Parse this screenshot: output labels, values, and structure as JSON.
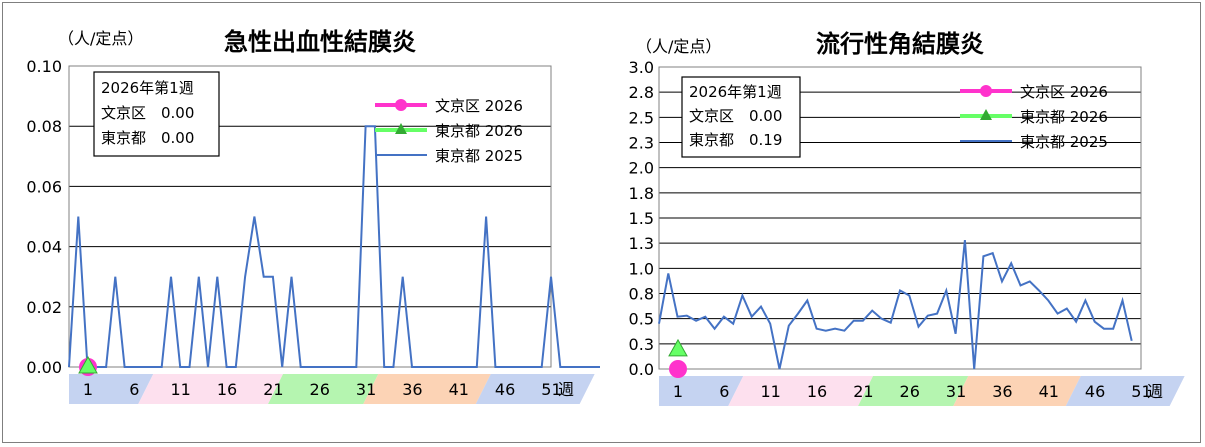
{
  "colors": {
    "bunkyo_2026": "#ff33cc",
    "tokyo_2026": "#66ff66",
    "tokyo_2025": "#4472c4",
    "band_blue": "#c5d3f1",
    "band_pink": "#fde0ee",
    "band_green": "#b5f5b0",
    "band_orange": "#fcd3b5"
  },
  "week_suffix": "週",
  "chart_data": [
    {
      "type": "line",
      "title": "急性出血性結膜炎",
      "ylabel": "（人/定点）",
      "ylim": [
        0,
        0.1
      ],
      "yticks": [
        "0.00",
        "0.02",
        "0.04",
        "0.06",
        "0.08",
        "0.10"
      ],
      "ytick_values": [
        0,
        0.02,
        0.04,
        0.06,
        0.08,
        0.1
      ],
      "x_ticks": [
        "1",
        "6",
        "11",
        "16",
        "21",
        "26",
        "31",
        "36",
        "41",
        "46",
        "51"
      ],
      "info": {
        "week": "2026年第1週",
        "line1": "文京区　0.00",
        "line2": "東京都　0.00"
      },
      "legend": [
        "文京区 2026",
        "東京都 2026",
        "東京都 2025"
      ],
      "series": [
        {
          "name": "文京区 2026",
          "values": [
            0
          ]
        },
        {
          "name": "東京都 2026",
          "values": [
            0
          ]
        },
        {
          "name": "東京都 2025",
          "values": [
            0,
            0.05,
            0,
            0,
            0,
            0.03,
            0,
            0,
            0,
            0,
            0,
            0.03,
            0,
            0,
            0.03,
            0,
            0.03,
            0,
            0,
            0.03,
            0.05,
            0.03,
            0.03,
            0,
            0.03,
            0,
            0,
            0,
            0,
            0,
            0,
            0,
            0.08,
            0.08,
            0,
            0,
            0.03,
            0,
            0,
            0,
            0,
            0,
            0,
            0,
            0,
            0.05,
            0,
            0,
            0,
            0,
            0,
            0,
            0.03,
            0,
            0,
            0,
            0,
            0,
            0
          ]
        }
      ]
    },
    {
      "type": "line",
      "title": "流行性角結膜炎",
      "ylabel": "（人/定点）",
      "ylim": [
        0,
        3.0
      ],
      "yticks": [
        "0.0",
        "0.3",
        "0.5",
        "0.8",
        "1.0",
        "1.3",
        "1.5",
        "1.8",
        "2.0",
        "2.3",
        "2.5",
        "2.8",
        "3.0"
      ],
      "ytick_values": [
        0,
        0.25,
        0.5,
        0.75,
        1.0,
        1.25,
        1.5,
        1.75,
        2.0,
        2.25,
        2.5,
        2.75,
        3.0
      ],
      "x_ticks": [
        "1",
        "6",
        "11",
        "16",
        "21",
        "26",
        "31",
        "36",
        "41",
        "46",
        "51"
      ],
      "info": {
        "week": "2026年第1週",
        "line1": "文京区　0.00",
        "line2": "東京都　0.19"
      },
      "legend": [
        "文京区 2026",
        "東京都 2026",
        "東京都 2025"
      ],
      "series": [
        {
          "name": "文京区 2026",
          "values": [
            0.0
          ]
        },
        {
          "name": "東京都 2026",
          "values": [
            0.19
          ]
        },
        {
          "name": "東京都 2025",
          "values": [
            0.45,
            0.95,
            0.52,
            0.53,
            0.48,
            0.52,
            0.4,
            0.52,
            0.45,
            0.73,
            0.52,
            0.62,
            0.45,
            0.0,
            0.43,
            0.55,
            0.68,
            0.4,
            0.38,
            0.4,
            0.38,
            0.48,
            0.48,
            0.58,
            0.5,
            0.46,
            0.78,
            0.73,
            0.42,
            0.53,
            0.55,
            0.78,
            0.35,
            1.28,
            0.0,
            1.12,
            1.15,
            0.87,
            1.05,
            0.83,
            0.87,
            0.78,
            0.68,
            0.55,
            0.6,
            0.47,
            0.68,
            0.47,
            0.4,
            0.4,
            0.68,
            0.28
          ]
        }
      ]
    }
  ]
}
